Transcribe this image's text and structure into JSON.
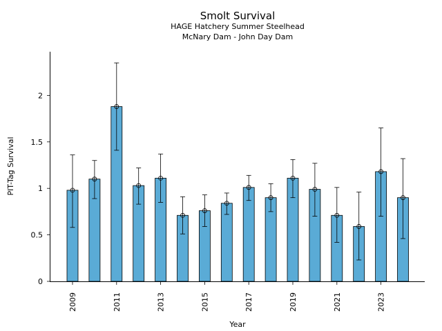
{
  "chart_data": {
    "type": "bar",
    "title": "Smolt Survival",
    "subtitle_1": "HAGE Hatchery Summer Steelhead",
    "subtitle_2": "McNary Dam - John Day Dam",
    "xlabel": "Year",
    "ylabel": "PIT-Tag Survival",
    "categories": [
      "2009",
      "2010",
      "2011",
      "2012",
      "2013",
      "2014",
      "2015",
      "2016",
      "2017",
      "2018",
      "2019",
      "2020",
      "2021",
      "2022",
      "2023",
      "2024"
    ],
    "values": [
      0.98,
      1.1,
      1.88,
      1.03,
      1.11,
      0.71,
      0.76,
      0.84,
      1.01,
      0.9,
      1.11,
      0.99,
      0.71,
      0.59,
      1.18,
      0.9
    ],
    "lower": [
      0.58,
      0.89,
      1.41,
      0.83,
      0.85,
      0.51,
      0.59,
      0.72,
      0.87,
      0.75,
      0.9,
      0.7,
      0.42,
      0.23,
      0.7,
      0.46
    ],
    "upper": [
      1.36,
      1.3,
      2.35,
      1.22,
      1.37,
      0.91,
      0.93,
      0.95,
      1.14,
      1.05,
      1.31,
      1.27,
      1.01,
      0.96,
      1.65,
      1.32
    ],
    "x_tick_labels": [
      "2009",
      "2011",
      "2013",
      "2015",
      "2017",
      "2019",
      "2021",
      "2023"
    ],
    "y_ticks": [
      0,
      0.5,
      1,
      1.5,
      2
    ],
    "y_tick_labels": [
      "0",
      "0.5",
      "1",
      "1.5",
      "2"
    ],
    "ylim": [
      0,
      2.47
    ],
    "grid": false,
    "legend": "none",
    "colors": {
      "bar": "#5aabd6",
      "edge": "#000000"
    }
  }
}
